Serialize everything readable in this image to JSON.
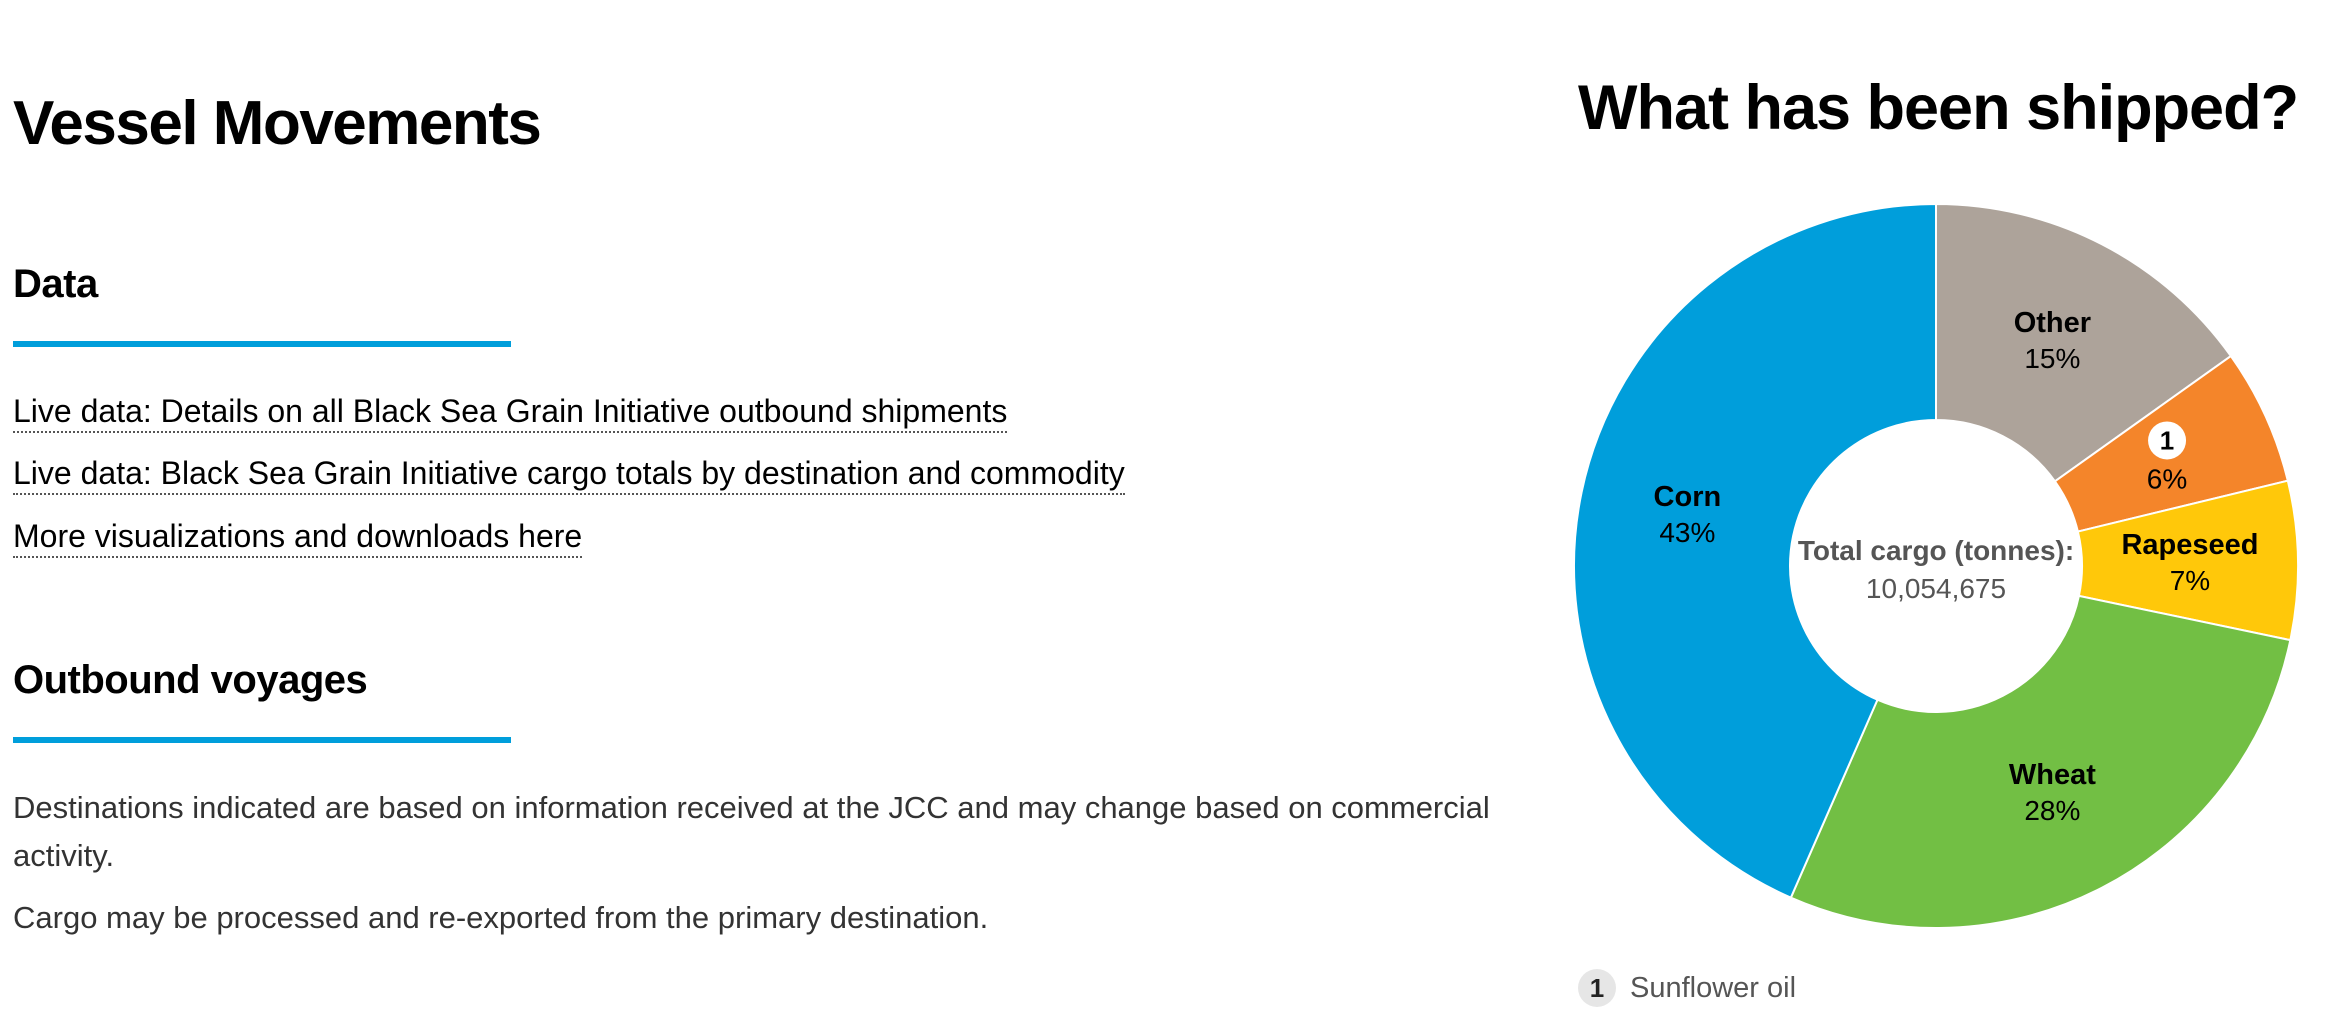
{
  "page_title": "Vessel Movements",
  "data_section": {
    "heading": "Data",
    "links": [
      "Live data: Details on all Black Sea Grain Initiative outbound shipments",
      "Live data: Black Sea Grain Initiative cargo totals by destination and commodity",
      "More visualizations and downloads here"
    ]
  },
  "outbound_section": {
    "heading": "Outbound voyages",
    "notes": [
      "Destinations indicated are based on information received at the JCC and may change based on commercial activity.",
      "Cargo may be processed and re-exported from the primary destination."
    ]
  },
  "chart_data": {
    "type": "pie",
    "title": "What has been shipped?",
    "center_label": "Total cargo (tonnes):",
    "center_value": "10,054,675",
    "slices": [
      {
        "label": "Other",
        "value": 15,
        "display": "15%",
        "color": "#ada39a"
      },
      {
        "label": "1",
        "value": 6,
        "display": "6%",
        "color": "#f4852a",
        "marker": true
      },
      {
        "label": "Rapeseed",
        "value": 7,
        "display": "7%",
        "color": "#ffc80a"
      },
      {
        "label": "Wheat",
        "value": 28,
        "display": "28%",
        "color": "#72bf44"
      },
      {
        "label": "Corn",
        "value": 43,
        "display": "43%",
        "color": "#009edb"
      }
    ],
    "legend": [
      {
        "marker": "1",
        "label": "Sunflower oil"
      }
    ]
  }
}
